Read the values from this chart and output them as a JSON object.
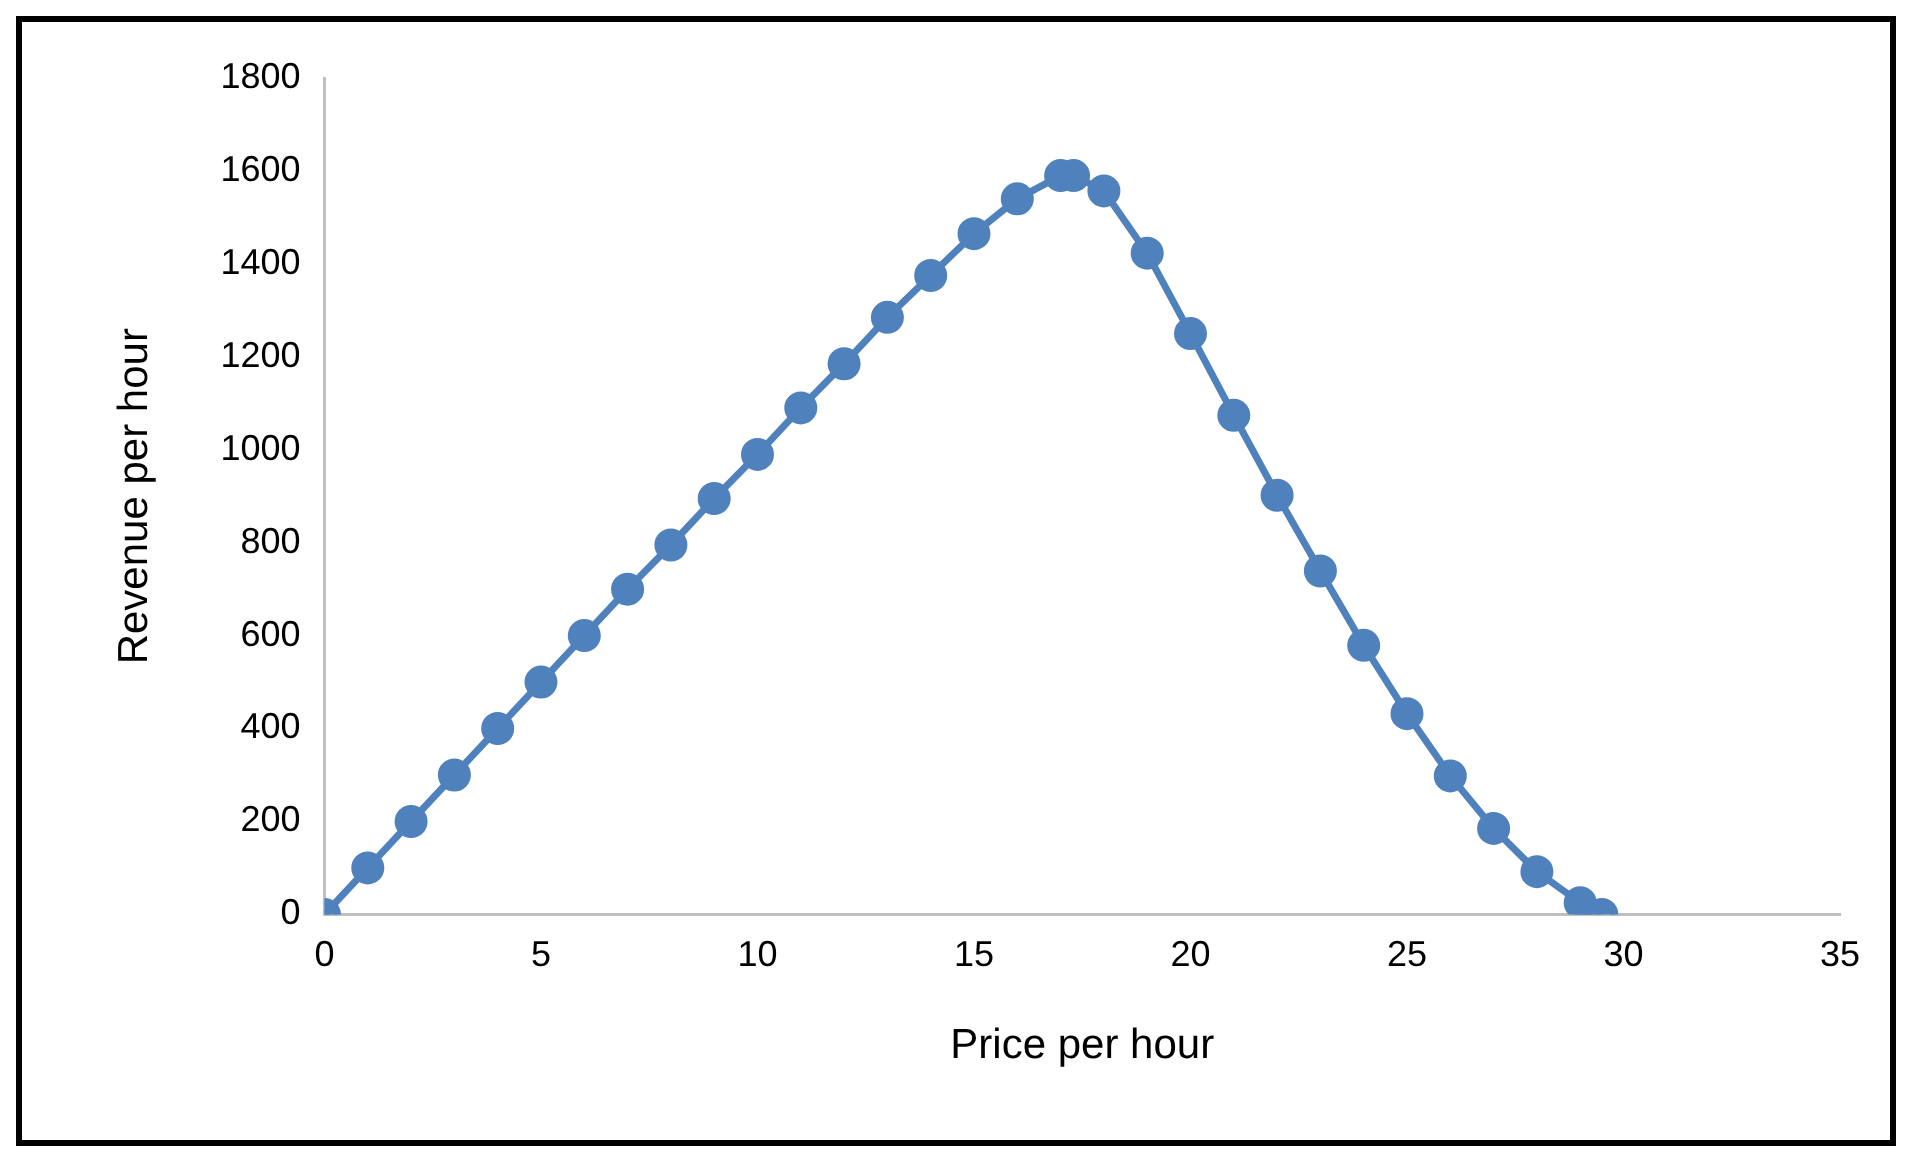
{
  "chart_data": {
    "type": "line",
    "xlabel": "Price per hour",
    "ylabel": "Revenue per hour",
    "x": [
      0,
      1,
      2,
      3,
      4,
      5,
      6,
      7,
      8,
      9,
      10,
      11,
      12,
      13,
      14,
      15,
      16,
      17,
      17.3,
      18,
      19,
      20,
      21,
      22,
      23,
      24,
      25,
      26,
      27,
      28,
      29,
      29.5
    ],
    "series": [
      {
        "color": "#4f81bd",
        "values": [
          0,
          100,
          200,
          300,
          400,
          500,
          600,
          700,
          795,
          895,
          990,
          1090,
          1185,
          1285,
          1375,
          1465,
          1540,
          1590,
          1590,
          1557,
          1423,
          1250,
          1074,
          902,
          739,
          579,
          432,
          298,
          185,
          92,
          25,
          0
        ]
      }
    ],
    "xlim": [
      0,
      35
    ],
    "xticks": [
      0,
      5,
      10,
      15,
      20,
      25,
      30,
      35
    ],
    "ylim": [
      0,
      1800
    ],
    "yticks": [
      0,
      200,
      400,
      600,
      800,
      1000,
      1200,
      1400,
      1600,
      1800
    ],
    "grid": false,
    "legend": false,
    "marker": "circle",
    "line_style": "solid"
  }
}
